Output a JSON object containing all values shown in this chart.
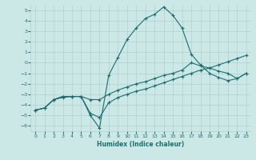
{
  "xlabel": "Humidex (Indice chaleur)",
  "xlim": [
    -0.5,
    23.5
  ],
  "ylim": [
    -6.5,
    5.5
  ],
  "xticks": [
    0,
    1,
    2,
    3,
    4,
    5,
    6,
    7,
    8,
    9,
    10,
    11,
    12,
    13,
    14,
    15,
    16,
    17,
    18,
    19,
    20,
    21,
    22,
    23
  ],
  "yticks": [
    -6,
    -5,
    -4,
    -3,
    -2,
    -1,
    0,
    1,
    2,
    3,
    4,
    5
  ],
  "bg_color": "#cce8e6",
  "grid_color": "#b0d0ce",
  "line_color": "#1a7070",
  "series": [
    {
      "x": [
        0,
        1,
        2,
        3,
        4,
        5,
        6,
        7,
        8,
        9,
        10,
        11,
        12,
        13,
        14,
        15,
        16,
        17,
        18,
        19,
        20,
        21,
        22,
        23
      ],
      "y": [
        -4.5,
        -4.3,
        -3.5,
        -3.3,
        -3.2,
        -3.2,
        -5.0,
        -6.2,
        -1.2,
        0.5,
        2.2,
        3.3,
        4.2,
        4.6,
        5.3,
        4.5,
        3.3,
        0.8,
        -0.2,
        -1.0,
        -1.4,
        -1.7,
        -1.5,
        -1.0
      ]
    },
    {
      "x": [
        0,
        1,
        2,
        3,
        4,
        5,
        6,
        7,
        8,
        9,
        10,
        11,
        12,
        13,
        14,
        15,
        16,
        17,
        18,
        19,
        20,
        21,
        22,
        23
      ],
      "y": [
        -4.5,
        -4.3,
        -3.5,
        -3.2,
        -3.2,
        -3.2,
        -3.5,
        -3.5,
        -3.0,
        -2.6,
        -2.3,
        -2.0,
        -1.8,
        -1.5,
        -1.2,
        -1.0,
        -0.7,
        0.0,
        -0.3,
        -0.5,
        -0.8,
        -1.0,
        -1.5,
        -1.0
      ]
    },
    {
      "x": [
        0,
        1,
        2,
        3,
        4,
        5,
        6,
        7,
        8,
        9,
        10,
        11,
        12,
        13,
        14,
        15,
        16,
        17,
        18,
        19,
        20,
        21,
        22,
        23
      ],
      "y": [
        -4.5,
        -4.3,
        -3.5,
        -3.2,
        -3.2,
        -3.2,
        -4.8,
        -5.2,
        -3.8,
        -3.3,
        -3.0,
        -2.7,
        -2.5,
        -2.2,
        -1.9,
        -1.6,
        -1.3,
        -1.0,
        -0.7,
        -0.5,
        -0.2,
        0.1,
        0.4,
        0.7
      ]
    }
  ]
}
